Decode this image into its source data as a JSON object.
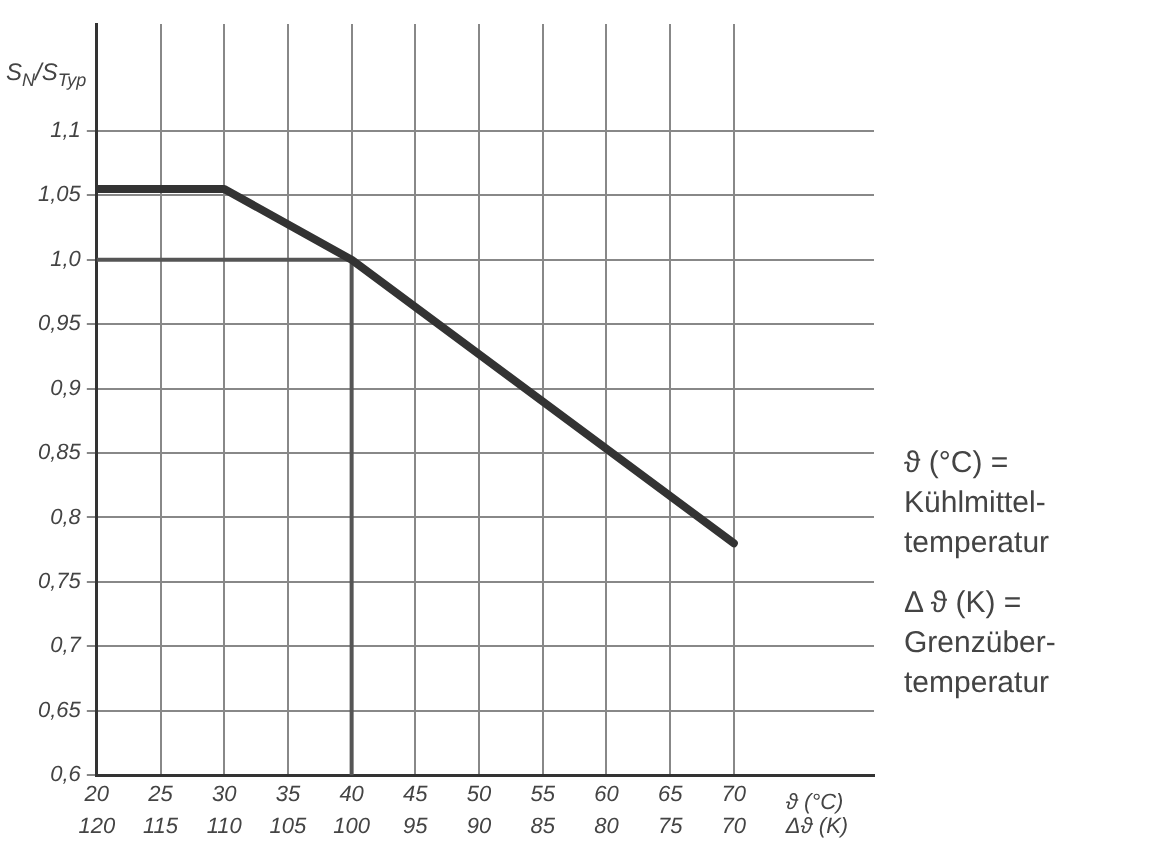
{
  "chart_data": {
    "type": "line",
    "ylabel": "S$_{N}$/S$_{Typ}$",
    "xlabel": "ϑ (°C)",
    "x2label": "Δϑ (K)",
    "x": [
      20,
      30,
      40,
      70
    ],
    "series": [
      {
        "color": "#333333",
        "values": [
          1.055,
          1.055,
          1.0,
          0.78
        ]
      }
    ],
    "xlim": [
      20,
      81
    ],
    "xticks": [
      20,
      25,
      30,
      35,
      40,
      45,
      50,
      55,
      60,
      65,
      70
    ],
    "x2lim": [
      120,
      59
    ],
    "x2ticks": [
      120,
      115,
      110,
      105,
      100,
      95,
      90,
      85,
      80,
      75,
      70
    ],
    "ylim": [
      0.6,
      1.183
    ],
    "yticks": [
      {
        "value": 0.6,
        "label": "0,6"
      },
      {
        "value": 0.65,
        "label": "0,65"
      },
      {
        "value": 0.7,
        "label": "0,7"
      },
      {
        "value": 0.75,
        "label": "0,75"
      },
      {
        "value": 0.8,
        "label": "0,8"
      },
      {
        "value": 0.85,
        "label": "0,85"
      },
      {
        "value": 0.9,
        "label": "0,9"
      },
      {
        "value": 0.95,
        "label": "0,95"
      },
      {
        "value": 1.0,
        "label": "1,0"
      },
      {
        "value": 1.05,
        "label": "1,05"
      },
      {
        "value": 1.1,
        "label": "1,1"
      }
    ],
    "ref_lines": [
      {
        "axis": "y",
        "value": 1.0,
        "color": "#555555"
      },
      {
        "axis": "x",
        "value": 40,
        "color": "#555555"
      }
    ],
    "grid": true,
    "legend": false,
    "marker": "none",
    "line_style": "solid",
    "annotations": [
      "ϑ (°C) =\nKühlmittel-\ntemperatur",
      "Δ ϑ (K) =\nGrenzüber-\ntemperatur"
    ]
  }
}
